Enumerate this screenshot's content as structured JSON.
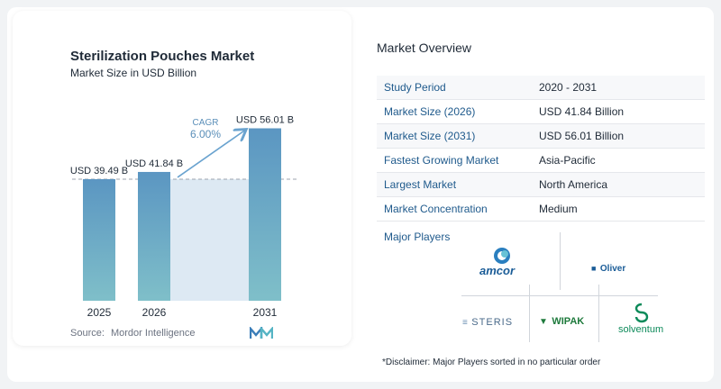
{
  "chart": {
    "title": "Sterilization Pouches Market",
    "subtitle": "Market Size in USD Billion",
    "source_label": "Source:",
    "source_value": "Mordor Intelligence"
  },
  "chart_data": {
    "type": "bar",
    "title": "Sterilization Pouches Market",
    "subtitle": "Market Size in USD Billion",
    "categories": [
      "2025",
      "2026",
      "2031"
    ],
    "values": [
      39.49,
      41.84,
      56.01
    ],
    "data_labels": [
      "USD 39.49 B",
      "USD 41.84 B",
      "USD 56.01 B"
    ],
    "cagr_label": "CAGR",
    "cagr_value": "6.00%",
    "colors": {
      "bar_top": "#5b96c2",
      "bar_bottom": "#7fbfc9",
      "shade": "#dde9f3",
      "arrow": "#6aa3cf"
    },
    "grid": false
  },
  "overview": {
    "title": "Market Overview",
    "rows": [
      {
        "key": "Study Period",
        "value": "2020 - 2031"
      },
      {
        "key": "Market Size (2026)",
        "value": "USD 41.84 Billion"
      },
      {
        "key": "Market Size (2031)",
        "value": "USD 56.01 Billion"
      },
      {
        "key": "Fastest Growing Market",
        "value": "Asia-Pacific"
      },
      {
        "key": "Largest Market",
        "value": "North America"
      },
      {
        "key": "Market Concentration",
        "value": "Medium"
      }
    ],
    "players_title": "Major Players",
    "players": [
      "amcor",
      "Oliver",
      "STERIS",
      "WIPAK",
      "solventum"
    ],
    "disclaimer": "*Disclaimer: Major Players sorted in no particular order"
  }
}
